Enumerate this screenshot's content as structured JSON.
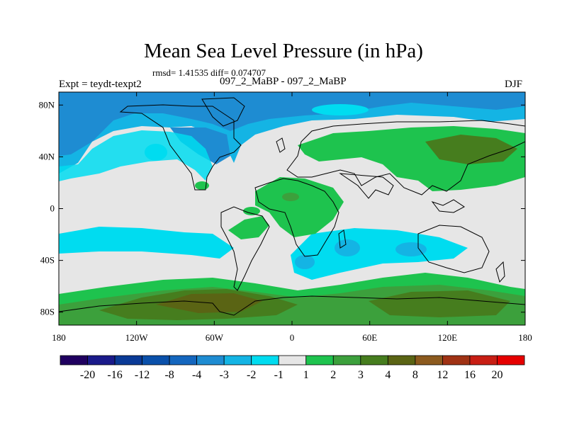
{
  "header": {
    "title": "Mean Sea Level Pressure (in hPa)",
    "stats": "rmsd= 1.41535 diff= 0.074707",
    "experiment": "Expt = teydt-texpt2",
    "case_name": "097_2_MaBP - 097_2_MaBP",
    "season": "DJF"
  },
  "axes": {
    "longitude_range": [
      -180,
      180
    ],
    "latitude_range": [
      -90,
      90
    ],
    "x_ticks": [
      {
        "value": -180,
        "label": "180"
      },
      {
        "value": -120,
        "label": "120W"
      },
      {
        "value": -60,
        "label": "60W"
      },
      {
        "value": 0,
        "label": "0"
      },
      {
        "value": 60,
        "label": "60E"
      },
      {
        "value": 120,
        "label": "120E"
      },
      {
        "value": 180,
        "label": "180"
      }
    ],
    "y_ticks": [
      {
        "value": 80,
        "label": "80N"
      },
      {
        "value": 40,
        "label": "40N"
      },
      {
        "value": 0,
        "label": "0"
      },
      {
        "value": -40,
        "label": "40S"
      },
      {
        "value": -80,
        "label": "80S"
      }
    ]
  },
  "colorbar": {
    "colors": [
      "#200060",
      "#1a1a8a",
      "#0a3a96",
      "#0a50aa",
      "#1466be",
      "#1e8cd2",
      "#14b4e4",
      "#00dcf0",
      "#e6e6e6",
      "#1ec34e",
      "#3ca03c",
      "#467d1e",
      "#5a6414",
      "#8c5a1e",
      "#a03214",
      "#c81e14",
      "#e60000"
    ],
    "labels": [
      "-20",
      "-16",
      "-12",
      "-8",
      "-4",
      "-3",
      "-2",
      "-1",
      "1",
      "2",
      "3",
      "4",
      "8",
      "12",
      "16",
      "20"
    ]
  },
  "map_colors": {
    "background": "#e6e6e6",
    "deep_blue": "#1e8cd2",
    "mid_blue": "#14b4e4",
    "cyan": "#00dcf0",
    "green": "#1ec34e",
    "dark_green": "#3ca03c",
    "olive": "#467d1e",
    "brown": "#5a6414"
  }
}
